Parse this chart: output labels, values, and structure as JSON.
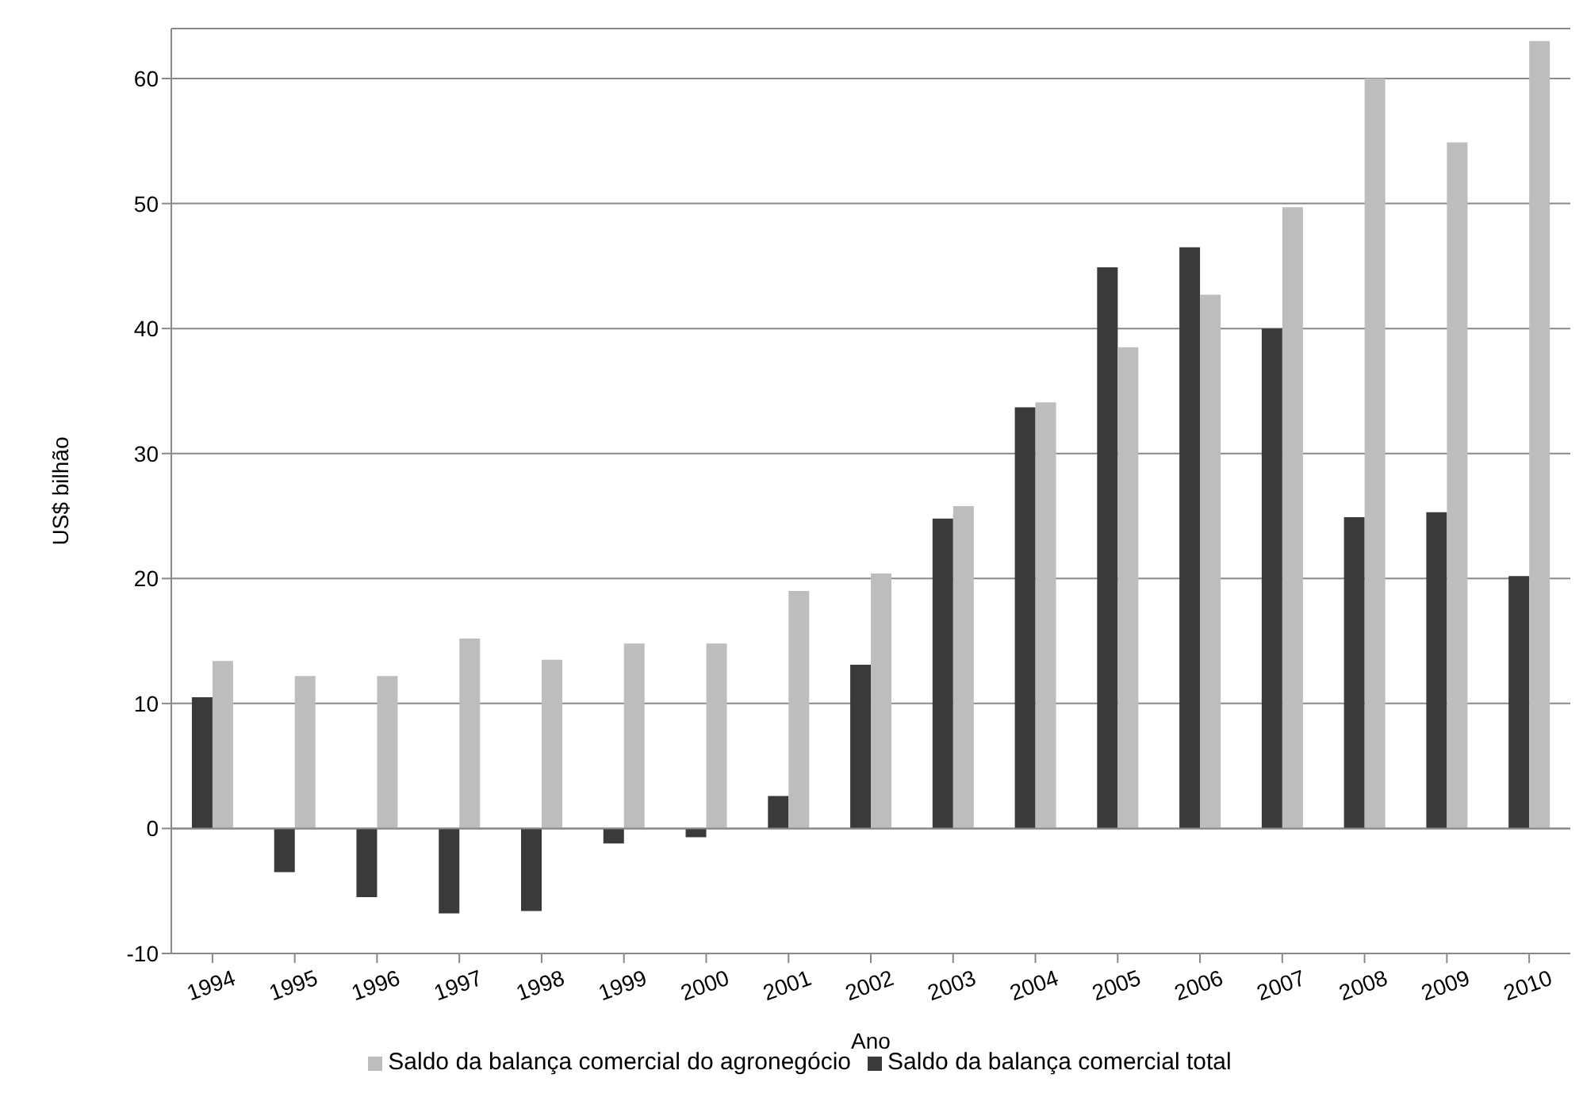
{
  "chart_data": {
    "type": "bar",
    "xlabel": "Ano",
    "ylabel": "US$ bilhão",
    "categories": [
      "1994",
      "1995",
      "1996",
      "1997",
      "1998",
      "1999",
      "2000",
      "2001",
      "2002",
      "2003",
      "2004",
      "2005",
      "2006",
      "2007",
      "2008",
      "2009",
      "2010"
    ],
    "series": [
      {
        "name": "Saldo da balança comercial total",
        "color": "#3a3a3a",
        "values": [
          10.5,
          -3.5,
          -5.5,
          -6.8,
          -6.6,
          -1.2,
          -0.7,
          2.6,
          13.1,
          24.8,
          33.7,
          44.9,
          46.5,
          40.0,
          24.9,
          25.3,
          20.2
        ]
      },
      {
        "name": "Saldo da balança comercial do agronegócio",
        "color": "#bdbdbd",
        "values": [
          13.4,
          12.2,
          12.2,
          15.2,
          13.5,
          14.8,
          14.8,
          19.0,
          20.4,
          25.8,
          34.1,
          38.5,
          42.7,
          49.7,
          60.0,
          54.9,
          63.0
        ]
      }
    ],
    "ylim": [
      -10,
      64
    ],
    "yticks": [
      -10,
      0,
      10,
      20,
      30,
      40,
      50,
      60
    ],
    "grid": "y",
    "legend": "bottom"
  }
}
